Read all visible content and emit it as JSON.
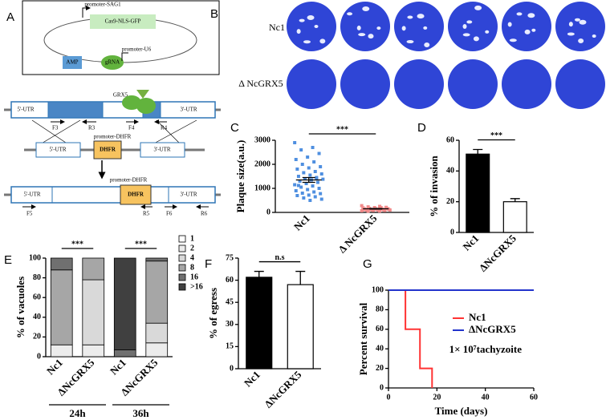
{
  "panel_labels": [
    "A",
    "B",
    "C",
    "D",
    "E",
    "F",
    "G"
  ],
  "diagram": {
    "plasmid": {
      "promoter1": "promoter-SAG1",
      "cas9": "Cas9-NLS-GFP",
      "promoter2": "promoter-U6",
      "grna": "gRNA",
      "amp": "AMP"
    },
    "locus": {
      "gene": "GRX5",
      "utr5": "5'-UTR",
      "utr3": "3'-UTR",
      "primers": [
        "F3",
        "R3",
        "F4",
        "R4"
      ]
    },
    "donor": {
      "promoter": "promoter-DHFR",
      "marker": "DHFR",
      "utr5": "5'-UTR",
      "utr3": "3'-UTR"
    },
    "result": {
      "promoter": "promoter-DHFR",
      "marker": "DHFR",
      "utr5": "5'-UTR",
      "utr3": "3'-UTR",
      "primers": [
        "F5",
        "R5",
        "F6",
        "R6"
      ]
    }
  },
  "plaque_assay": {
    "rows": [
      "Nc1",
      "Δ NcGRX5"
    ]
  },
  "chart_data": [
    {
      "type": "strip",
      "ylabel": "Plaque size(a.u.)",
      "categories": [
        "Nc1",
        "Δ NcGRX5"
      ],
      "points": [
        [
          2900,
          2700,
          2600,
          2450,
          2300,
          2200,
          2100,
          2000,
          1900,
          1850,
          1800,
          1700,
          1650,
          1600,
          1550,
          1500,
          1450,
          1400,
          1380,
          1350,
          1300,
          1250,
          1200,
          1150,
          1100,
          1050,
          1000,
          950,
          900,
          850,
          800,
          780,
          720,
          700,
          650,
          600,
          550,
          500,
          1120,
          1420
        ],
        [
          280,
          250,
          230,
          210,
          200,
          190,
          180,
          170,
          160,
          150,
          150,
          140,
          130,
          130,
          120,
          120,
          110,
          100,
          100,
          90,
          90,
          80,
          80,
          70,
          60,
          50,
          160,
          140,
          110,
          200
        ]
      ],
      "means": [
        1350,
        150
      ],
      "errors": [
        100,
        10
      ],
      "colors": [
        "#4f8fe0",
        "#f28b8b"
      ],
      "ylim": [
        0,
        3000
      ],
      "yticks": [
        0,
        1000,
        2000,
        3000
      ],
      "annotation": "***"
    },
    {
      "type": "bar",
      "ylabel": "% of invasion",
      "categories": [
        "Nc1",
        "ΔNcGRX5"
      ],
      "values": [
        51,
        20
      ],
      "errors": [
        3,
        2
      ],
      "colors": [
        "#000000",
        "#ffffff"
      ],
      "ylim": [
        0,
        60
      ],
      "yticks": [
        0,
        20,
        40,
        60
      ],
      "annotation": "***"
    },
    {
      "type": "stacked_bar",
      "ylabel": "% of vacuoles",
      "categories": [
        "Nc1",
        "ΔNcGRX5",
        "Nc1",
        "ΔNcGRX5"
      ],
      "groups": [
        "24h",
        "36h"
      ],
      "series": [
        {
          "name": "1",
          "color": "#ffffff",
          "values": [
            0,
            0,
            0,
            0
          ]
        },
        {
          "name": "2",
          "color": "#ececec",
          "values": [
            12,
            12,
            0,
            14
          ]
        },
        {
          "name": "4",
          "color": "#d9d9d9",
          "values": [
            0,
            66,
            0,
            20
          ]
        },
        {
          "name": "8",
          "color": "#a6a6a6",
          "values": [
            76,
            22,
            0,
            63
          ]
        },
        {
          "name": "16",
          "color": "#707070",
          "values": [
            12,
            0,
            7,
            3
          ]
        },
        {
          "name": ">16",
          "color": "#404040",
          "values": [
            0,
            0,
            93,
            0
          ]
        }
      ],
      "ylim": [
        0,
        100
      ],
      "yticks": [
        0,
        20,
        40,
        60,
        80,
        100
      ],
      "annotations": [
        "***",
        "***"
      ]
    },
    {
      "type": "bar",
      "ylabel": "% of egress",
      "categories": [
        "Nc1",
        "ΔNcGRX5"
      ],
      "values": [
        62,
        57
      ],
      "errors": [
        4,
        9
      ],
      "colors": [
        "#000000",
        "#ffffff"
      ],
      "ylim": [
        0,
        75
      ],
      "yticks": [
        0,
        15,
        30,
        45,
        60,
        75
      ],
      "annotation": "n.s"
    },
    {
      "type": "line",
      "ylabel": "Percent survival",
      "xlabel": "Time (days)",
      "series": [
        {
          "name": "Nc1",
          "color": "#ff3333",
          "x": [
            0,
            7,
            7,
            13,
            13,
            18,
            18
          ],
          "values": [
            100,
            100,
            60,
            60,
            20,
            20,
            0
          ]
        },
        {
          "name": "ΔNcGRX5",
          "color": "#2233cc",
          "x": [
            0,
            60
          ],
          "values": [
            100,
            100
          ]
        }
      ],
      "xlim": [
        0,
        60
      ],
      "xticks": [
        0,
        20,
        40,
        60
      ],
      "ylim": [
        0,
        100
      ],
      "yticks": [
        0,
        20,
        40,
        60,
        80,
        100
      ],
      "annotation": "1× 10⁷tachyzoite"
    }
  ]
}
